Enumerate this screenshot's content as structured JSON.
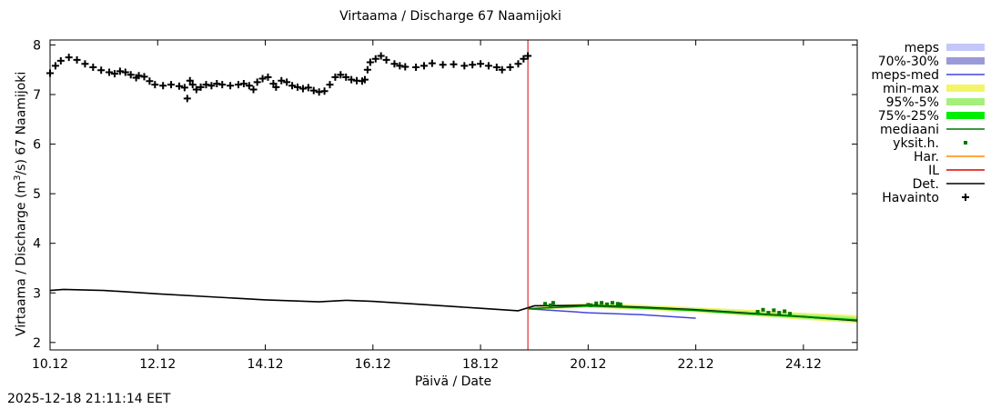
{
  "chart_data": {
    "type": "line",
    "title": "Virtaama / Discharge  67 Naamijoki",
    "xlabel": "Päivä / Date",
    "ylabel_prefix": "Virtaama / Discharge (m",
    "ylabel_sup": "3",
    "ylabel_suffix": "/s)  67 Naamijoki",
    "timestamp": "2025-12-18 21:11:14 EET",
    "x_unit": "days since 10.12",
    "xlim": [
      0,
      15
    ],
    "ylim": [
      1.85,
      8.1
    ],
    "x_ticks": [
      {
        "x": 0,
        "label": "10.12"
      },
      {
        "x": 2,
        "label": "12.12"
      },
      {
        "x": 4,
        "label": "14.12"
      },
      {
        "x": 6,
        "label": "16.12"
      },
      {
        "x": 8,
        "label": "18.12"
      },
      {
        "x": 10,
        "label": "20.12"
      },
      {
        "x": 12,
        "label": "22.12"
      },
      {
        "x": 14,
        "label": "24.12"
      }
    ],
    "y_ticks": [
      {
        "y": 2,
        "label": "2"
      },
      {
        "y": 3,
        "label": "3"
      },
      {
        "y": 4,
        "label": "4"
      },
      {
        "y": 5,
        "label": "5"
      },
      {
        "y": 6,
        "label": "6"
      },
      {
        "y": 7,
        "label": "7"
      },
      {
        "y": 8,
        "label": "8"
      }
    ],
    "forecast_start_x": 8.88,
    "legend": [
      {
        "label": "meps",
        "kind": "band",
        "color": "#c4c8f8"
      },
      {
        "label": "70%-30%",
        "kind": "band",
        "color": "#9a9ad8"
      },
      {
        "label": "meps-med",
        "kind": "line",
        "color": "#4444dd"
      },
      {
        "label": "min-max",
        "kind": "band",
        "color": "#f4f46a"
      },
      {
        "label": "95%-5%",
        "kind": "band",
        "color": "#a4f07a"
      },
      {
        "label": "75%-25%",
        "kind": "band",
        "color": "#00ee00"
      },
      {
        "label": "mediaani",
        "kind": "line",
        "color": "#007700"
      },
      {
        "label": "yksit.h.",
        "kind": "dot",
        "color": "#007700"
      },
      {
        "label": "Har.",
        "kind": "line",
        "color": "#ff8800"
      },
      {
        "label": "IL",
        "kind": "line",
        "color": "#dd0000"
      },
      {
        "label": "Det.",
        "kind": "line",
        "color": "#000000"
      },
      {
        "label": "Havainto",
        "kind": "cross",
        "color": "#000000"
      }
    ],
    "series": [
      {
        "name": "Havainto",
        "kind": "cross",
        "points": [
          [
            0,
            7.43
          ],
          [
            0.1,
            7.58
          ],
          [
            0.2,
            7.68
          ],
          [
            0.35,
            7.75
          ],
          [
            0.5,
            7.7
          ],
          [
            0.65,
            7.62
          ],
          [
            0.8,
            7.55
          ],
          [
            0.95,
            7.49
          ],
          [
            1.1,
            7.45
          ],
          [
            1.2,
            7.42
          ],
          [
            1.3,
            7.47
          ],
          [
            1.4,
            7.45
          ],
          [
            1.5,
            7.4
          ],
          [
            1.6,
            7.34
          ],
          [
            1.65,
            7.38
          ],
          [
            1.75,
            7.36
          ],
          [
            1.85,
            7.27
          ],
          [
            1.95,
            7.2
          ],
          [
            2.1,
            7.18
          ],
          [
            2.25,
            7.2
          ],
          [
            2.4,
            7.17
          ],
          [
            2.5,
            7.14
          ],
          [
            2.55,
            6.92
          ],
          [
            2.6,
            7.28
          ],
          [
            2.65,
            7.2
          ],
          [
            2.72,
            7.1
          ],
          [
            2.8,
            7.15
          ],
          [
            2.9,
            7.2
          ],
          [
            3.0,
            7.18
          ],
          [
            3.1,
            7.22
          ],
          [
            3.2,
            7.2
          ],
          [
            3.35,
            7.18
          ],
          [
            3.5,
            7.2
          ],
          [
            3.6,
            7.22
          ],
          [
            3.7,
            7.18
          ],
          [
            3.78,
            7.1
          ],
          [
            3.85,
            7.25
          ],
          [
            3.95,
            7.32
          ],
          [
            4.05,
            7.35
          ],
          [
            4.15,
            7.22
          ],
          [
            4.2,
            7.15
          ],
          [
            4.3,
            7.28
          ],
          [
            4.4,
            7.25
          ],
          [
            4.5,
            7.18
          ],
          [
            4.6,
            7.15
          ],
          [
            4.7,
            7.12
          ],
          [
            4.8,
            7.14
          ],
          [
            4.9,
            7.08
          ],
          [
            5.0,
            7.05
          ],
          [
            5.1,
            7.07
          ],
          [
            5.2,
            7.2
          ],
          [
            5.3,
            7.35
          ],
          [
            5.4,
            7.4
          ],
          [
            5.5,
            7.35
          ],
          [
            5.6,
            7.3
          ],
          [
            5.7,
            7.28
          ],
          [
            5.8,
            7.27
          ],
          [
            5.85,
            7.3
          ],
          [
            5.9,
            7.5
          ],
          [
            5.95,
            7.65
          ],
          [
            6.05,
            7.72
          ],
          [
            6.15,
            7.78
          ],
          [
            6.25,
            7.7
          ],
          [
            6.4,
            7.62
          ],
          [
            6.5,
            7.58
          ],
          [
            6.6,
            7.56
          ],
          [
            6.8,
            7.55
          ],
          [
            6.95,
            7.58
          ],
          [
            7.1,
            7.63
          ],
          [
            7.3,
            7.6
          ],
          [
            7.5,
            7.61
          ],
          [
            7.7,
            7.58
          ],
          [
            7.85,
            7.6
          ],
          [
            8.0,
            7.62
          ],
          [
            8.15,
            7.58
          ],
          [
            8.3,
            7.55
          ],
          [
            8.4,
            7.5
          ],
          [
            8.55,
            7.55
          ],
          [
            8.7,
            7.62
          ],
          [
            8.8,
            7.72
          ],
          [
            8.88,
            7.78
          ]
        ]
      },
      {
        "name": "Det.",
        "kind": "line",
        "color": "#000000",
        "points": [
          [
            0,
            3.05
          ],
          [
            0.25,
            3.07
          ],
          [
            1.0,
            3.05
          ],
          [
            2.0,
            2.98
          ],
          [
            3.0,
            2.92
          ],
          [
            4.0,
            2.86
          ],
          [
            5.0,
            2.82
          ],
          [
            5.5,
            2.85
          ],
          [
            6.0,
            2.83
          ],
          [
            7.0,
            2.76
          ],
          [
            8.0,
            2.69
          ],
          [
            8.7,
            2.64
          ],
          [
            9.0,
            2.74
          ],
          [
            10.0,
            2.75
          ],
          [
            11.0,
            2.71
          ],
          [
            12.0,
            2.66
          ],
          [
            13.0,
            2.59
          ],
          [
            14.0,
            2.52
          ],
          [
            15.0,
            2.44
          ]
        ]
      },
      {
        "name": "meps-med",
        "kind": "line",
        "color": "#4444dd",
        "points": [
          [
            8.88,
            2.68
          ],
          [
            10,
            2.6
          ],
          [
            11,
            2.56
          ],
          [
            12,
            2.49
          ]
        ]
      },
      {
        "name": "min-max",
        "kind": "band",
        "color": "#f4f46a",
        "lower": [
          [
            8.88,
            2.66
          ],
          [
            10,
            2.7
          ],
          [
            11,
            2.66
          ],
          [
            12,
            2.61
          ],
          [
            13,
            2.54
          ],
          [
            14,
            2.46
          ],
          [
            15,
            2.39
          ]
        ],
        "upper": [
          [
            8.88,
            2.7
          ],
          [
            10,
            2.8
          ],
          [
            11,
            2.76
          ],
          [
            12,
            2.71
          ],
          [
            13,
            2.66
          ],
          [
            14,
            2.6
          ],
          [
            15,
            2.55
          ]
        ]
      },
      {
        "name": "95%-5%",
        "kind": "band",
        "color": "#a4f07a",
        "lower": [
          [
            8.88,
            2.67
          ],
          [
            10,
            2.71
          ],
          [
            11,
            2.67
          ],
          [
            12,
            2.62
          ],
          [
            13,
            2.55
          ],
          [
            14,
            2.48
          ],
          [
            15,
            2.41
          ]
        ],
        "upper": [
          [
            8.88,
            2.69
          ],
          [
            10,
            2.78
          ],
          [
            11,
            2.74
          ],
          [
            12,
            2.69
          ],
          [
            13,
            2.63
          ],
          [
            14,
            2.57
          ],
          [
            15,
            2.51
          ]
        ]
      },
      {
        "name": "75%-25%",
        "kind": "band",
        "color": "#00ee00",
        "lower": [
          [
            8.88,
            2.67
          ],
          [
            10,
            2.72
          ],
          [
            11,
            2.68
          ],
          [
            12,
            2.63
          ],
          [
            13,
            2.56
          ],
          [
            14,
            2.5
          ],
          [
            15,
            2.43
          ]
        ],
        "upper": [
          [
            8.88,
            2.69
          ],
          [
            10,
            2.76
          ],
          [
            11,
            2.72
          ],
          [
            12,
            2.67
          ],
          [
            13,
            2.6
          ],
          [
            14,
            2.54
          ],
          [
            15,
            2.47
          ]
        ]
      },
      {
        "name": "mediaani",
        "kind": "line",
        "color": "#007700",
        "points": [
          [
            8.88,
            2.68
          ],
          [
            10,
            2.74
          ],
          [
            11,
            2.7
          ],
          [
            12,
            2.65
          ],
          [
            13,
            2.58
          ],
          [
            14,
            2.52
          ],
          [
            15,
            2.45
          ]
        ]
      },
      {
        "name": "yksit.h.",
        "kind": "dot",
        "color": "#007700",
        "points": [
          [
            9.2,
            2.78
          ],
          [
            9.3,
            2.75
          ],
          [
            9.35,
            2.8
          ],
          [
            10.0,
            2.76
          ],
          [
            10.05,
            2.75
          ],
          [
            10.15,
            2.79
          ],
          [
            10.25,
            2.8
          ],
          [
            10.35,
            2.77
          ],
          [
            10.45,
            2.8
          ],
          [
            10.55,
            2.78
          ],
          [
            10.6,
            2.77
          ],
          [
            13.15,
            2.62
          ],
          [
            13.25,
            2.66
          ],
          [
            13.35,
            2.6
          ],
          [
            13.45,
            2.65
          ],
          [
            13.55,
            2.6
          ],
          [
            13.65,
            2.63
          ],
          [
            13.75,
            2.58
          ]
        ]
      }
    ]
  }
}
